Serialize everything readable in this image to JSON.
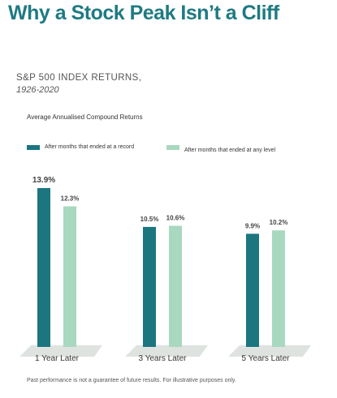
{
  "title": "Why a Stock Peak Isn’t a Cliff",
  "subtitle": "S&P 500 INDEX RETURNS,",
  "period": "1926-2020",
  "chart_label": "Average Annualised Compound Returns",
  "footnote": "Past performance is not a guarantee of future results. For illustrative purposes only.",
  "colors": {
    "title": "#1f7a82",
    "record": "#1b7680",
    "any_level": "#a8d8bf",
    "floor": "#dfe3e0"
  },
  "chart_data": {
    "type": "bar",
    "title": "",
    "xlabel": "",
    "ylabel": "",
    "categories": [
      "1 Year Later",
      "3 Years Later",
      "5 Years Later"
    ],
    "series": [
      {
        "name": "After months that ended at a record",
        "values": [
          13.9,
          10.5,
          9.9
        ],
        "labels": [
          "13.9%",
          "10.5%",
          "9.9%"
        ]
      },
      {
        "name": "After months that ended at any level",
        "values": [
          12.3,
          10.6,
          10.2
        ],
        "labels": [
          "12.3%",
          "10.6%",
          "10.2%"
        ]
      }
    ],
    "ylim": [
      0,
      13.9
    ],
    "grid": false,
    "legend": "top"
  }
}
